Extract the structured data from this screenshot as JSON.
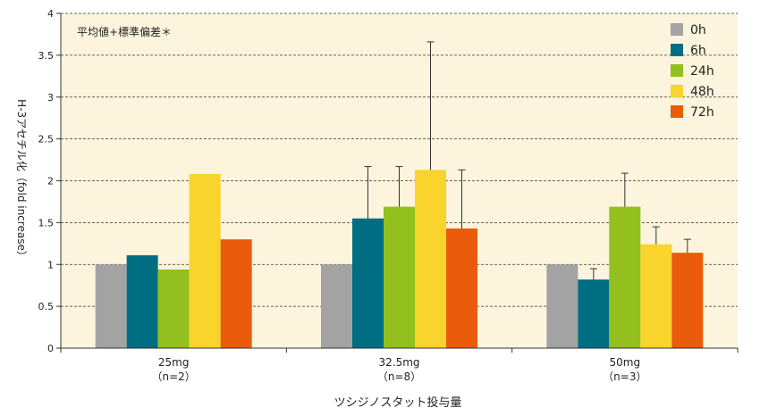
{
  "chart_data": {
    "type": "bar",
    "categories": [
      "25mg",
      "32.5mg",
      "50mg"
    ],
    "category_subtitles": [
      "（n=2）",
      "（n=8）",
      "（n=3）"
    ],
    "series": [
      {
        "name": "0h",
        "color": "#a3a3a3",
        "values": [
          1.0,
          1.0,
          1.0
        ],
        "errors": [
          null,
          null,
          null
        ]
      },
      {
        "name": "6h",
        "color": "#006e82",
        "values": [
          1.11,
          1.55,
          0.82
        ],
        "errors": [
          null,
          2.17,
          0.95
        ]
      },
      {
        "name": "24h",
        "color": "#93c01f",
        "values": [
          0.94,
          1.69,
          1.69
        ],
        "errors": [
          null,
          2.17,
          2.09
        ]
      },
      {
        "name": "48h",
        "color": "#f8d42c",
        "values": [
          2.08,
          2.13,
          1.24
        ],
        "errors": [
          null,
          3.66,
          1.45
        ]
      },
      {
        "name": "72h",
        "color": "#ea5b0c",
        "values": [
          1.3,
          1.43,
          1.14
        ],
        "errors": [
          null,
          2.13,
          1.3
        ]
      }
    ],
    "ylim": [
      0,
      4
    ],
    "yticks": [
      "0",
      "0.5",
      "1",
      "1.5",
      "2",
      "2.5",
      "3",
      "3.5",
      "4"
    ],
    "ylabel": "H-3アセチル化（fold increase）",
    "xlabel": "ツシジノスタット投与量",
    "annotation": "平均値+標準偏差＊",
    "legend_position": "top-right",
    "grid": "dashed-horizontal",
    "plot_background": "#fcf4dc"
  }
}
